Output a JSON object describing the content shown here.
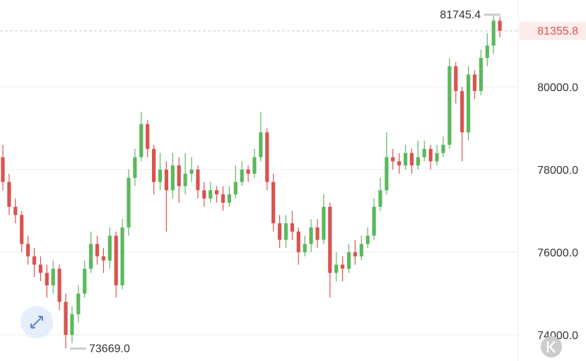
{
  "chart_data": {
    "type": "candlestick",
    "open": [
      78300,
      77700,
      77100,
      76900,
      76200,
      75900,
      75700,
      75500,
      75200,
      75600,
      74800,
      74000,
      74500,
      75000,
      75600,
      76200,
      75900,
      75800,
      76400,
      75200,
      76600,
      77800,
      78300,
      79100,
      78500,
      77700,
      78000,
      77500,
      78100,
      77600,
      77900,
      78000,
      77500,
      77300,
      77500,
      77400,
      77200,
      77400,
      77700,
      78000,
      77900,
      78300,
      78900,
      77700,
      76700,
      76300,
      76700,
      76500,
      76000,
      76200,
      76600,
      76300,
      77100,
      75500,
      75700,
      75600,
      76000,
      75900,
      76200,
      76400,
      77100,
      77500,
      78300,
      78200,
      78100,
      78400,
      78100,
      78300,
      78500,
      78200,
      78400,
      78600,
      80500,
      79900,
      78900,
      80300,
      79900,
      80700,
      81000,
      81600
    ],
    "high": [
      78600,
      77900,
      77300,
      77000,
      76400,
      76100,
      75900,
      75700,
      75800,
      75700,
      75000,
      74700,
      75200,
      75800,
      76500,
      76400,
      76100,
      76600,
      76500,
      76800,
      78000,
      78500,
      79400,
      79200,
      78600,
      78400,
      78200,
      78400,
      78300,
      78400,
      78300,
      78100,
      77700,
      77700,
      77600,
      77600,
      77600,
      78100,
      78200,
      78100,
      78500,
      79400,
      79000,
      77900,
      76900,
      76900,
      77000,
      76600,
      76400,
      76800,
      76800,
      77400,
      77200,
      76000,
      75900,
      76200,
      76300,
      76400,
      76600,
      77300,
      77800,
      78900,
      78500,
      78400,
      78600,
      78500,
      78700,
      78700,
      78600,
      78600,
      78800,
      80700,
      80600,
      80000,
      80500,
      80400,
      80900,
      81300,
      81745.4,
      81700
    ],
    "low": [
      77500,
      76900,
      76700,
      76000,
      75700,
      75400,
      75300,
      74900,
      75000,
      74600,
      73669,
      73800,
      74300,
      74900,
      75500,
      75700,
      75500,
      75600,
      74900,
      75100,
      76400,
      77600,
      78200,
      78300,
      77400,
      77500,
      76500,
      77300,
      77200,
      77400,
      77700,
      77300,
      77100,
      77200,
      77200,
      77000,
      77100,
      77300,
      77600,
      77700,
      77800,
      78200,
      77500,
      76500,
      76100,
      76100,
      76300,
      75700,
      75900,
      76000,
      76100,
      76200,
      74900,
      75300,
      75300,
      75500,
      75700,
      75800,
      76100,
      76300,
      77000,
      77400,
      78000,
      77900,
      78000,
      77900,
      78000,
      78200,
      78000,
      78100,
      78300,
      78500,
      79600,
      78200,
      78700,
      79700,
      79800,
      80500,
      80800,
      81200
    ],
    "close": [
      77700,
      77100,
      76900,
      76200,
      75900,
      75700,
      75500,
      75200,
      75600,
      74800,
      74000,
      74500,
      75000,
      75600,
      76200,
      75900,
      75800,
      76400,
      75200,
      76600,
      77800,
      78300,
      79100,
      78500,
      77700,
      78000,
      77500,
      78100,
      77600,
      77900,
      78000,
      77500,
      77300,
      77500,
      77400,
      77200,
      77400,
      77700,
      78000,
      77900,
      78300,
      78900,
      77700,
      76700,
      76300,
      76700,
      76500,
      76000,
      76200,
      76600,
      76300,
      77100,
      75500,
      75700,
      75600,
      76000,
      75900,
      76200,
      76400,
      77100,
      77500,
      78300,
      78200,
      78100,
      78400,
      78100,
      78300,
      78500,
      78200,
      78400,
      78600,
      80500,
      79900,
      78900,
      80300,
      79900,
      80700,
      81000,
      81600,
      81355.8
    ],
    "up_color": "#5cb85c",
    "down_color": "#d9534f",
    "ylim": [
      73368,
      82103
    ],
    "yticks": [
      {
        "value": 74000,
        "label": "74000.0"
      },
      {
        "value": 76000,
        "label": "76000.0"
      },
      {
        "value": 78000,
        "label": "78000.0"
      },
      {
        "value": 80000,
        "label": "80000.0"
      }
    ],
    "grid": true,
    "low_marker": {
      "value": 73669,
      "label": "73669.0"
    }
  }
}
